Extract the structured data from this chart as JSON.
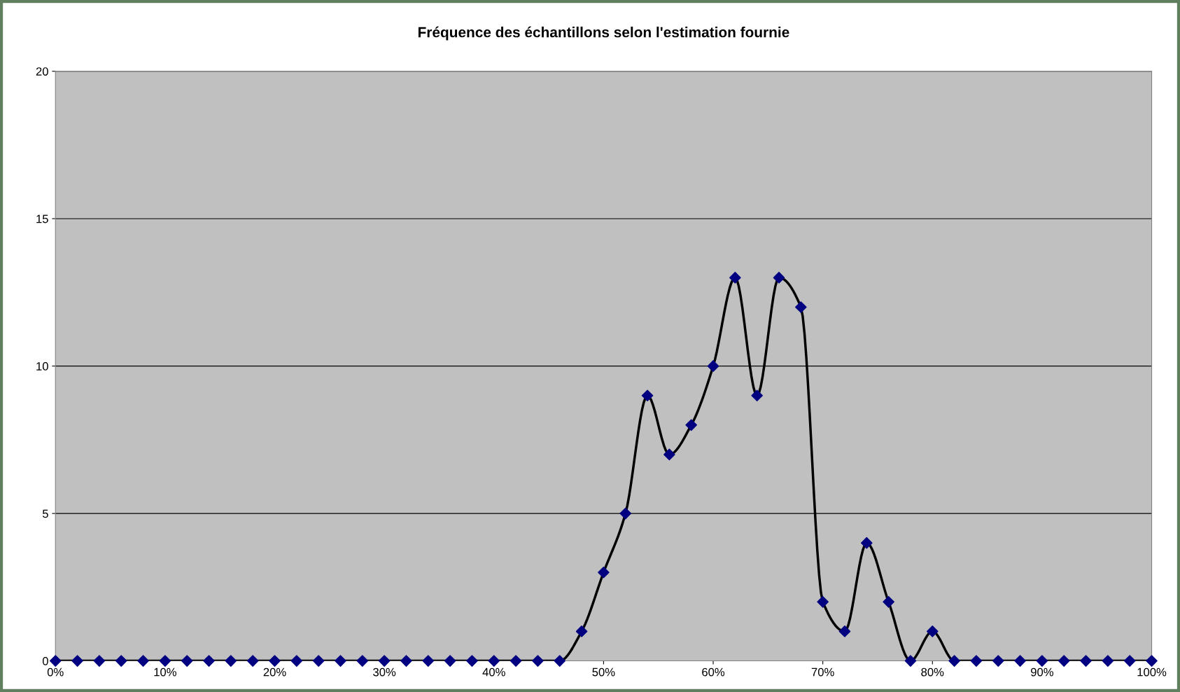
{
  "chart_data": {
    "type": "line",
    "title": "Fréquence des échantillons selon l'estimation fournie",
    "x": [
      0,
      2,
      4,
      6,
      8,
      10,
      12,
      14,
      16,
      18,
      20,
      22,
      24,
      26,
      28,
      30,
      32,
      34,
      36,
      38,
      40,
      42,
      44,
      46,
      48,
      50,
      52,
      54,
      56,
      58,
      60,
      62,
      64,
      66,
      68,
      70,
      72,
      74,
      76,
      78,
      80,
      82,
      84,
      86,
      88,
      90,
      92,
      94,
      96,
      98,
      100
    ],
    "series": [
      {
        "color": "#000000",
        "values": [
          0,
          0,
          0,
          0,
          0,
          0,
          0,
          0,
          0,
          0,
          0,
          0,
          0,
          0,
          0,
          0,
          0,
          0,
          0,
          0,
          0,
          0,
          0,
          0,
          1,
          3,
          5,
          9,
          7,
          8,
          10,
          13,
          9,
          13,
          12,
          2,
          1,
          4,
          2,
          0,
          1,
          0,
          0,
          0,
          0,
          0,
          0,
          0,
          0,
          0,
          0
        ],
        "colors": [
          "#000080",
          "#000080",
          "#000080",
          "#000080",
          "#000080",
          "#000080",
          "#000080",
          "#000080",
          "#000080",
          "#000080",
          "#000080",
          "#000080",
          "#000080",
          "#000080",
          "#000080",
          "#000080",
          "#000080",
          "#000080",
          "#000080",
          "#000080",
          "#000080",
          "#000080",
          "#000080",
          "#000080",
          "#000080",
          "#000080",
          "#000080",
          "#000080",
          "#000080",
          "#000080",
          "#000080",
          "#000080",
          "#000080",
          "#000080",
          "#000080",
          "#000080",
          "#000080",
          "#000080",
          "#000080",
          "#000080",
          "#000080",
          "#000080",
          "#000080",
          "#000080",
          "#000080",
          "#000080",
          "#000080",
          "#000080",
          "#000080",
          "#000080",
          "#000080"
        ]
      }
    ],
    "marker": "diamond",
    "line_style": "solid",
    "grid": "y",
    "legend": false,
    "xlim": [
      0,
      100
    ],
    "xticks": [
      {
        "value": 0,
        "label": "0%"
      },
      {
        "value": 10,
        "label": "10%"
      },
      {
        "value": 20,
        "label": "20%"
      },
      {
        "value": 30,
        "label": "30%"
      },
      {
        "value": 40,
        "label": "40%"
      },
      {
        "value": 50,
        "label": "50%"
      },
      {
        "value": 60,
        "label": "60%"
      },
      {
        "value": 70,
        "label": "70%"
      },
      {
        "value": 80,
        "label": "80%"
      },
      {
        "value": 90,
        "label": "90%"
      },
      {
        "value": 100,
        "label": "100%"
      }
    ],
    "ylim": [
      0,
      20
    ],
    "yticks": [
      0,
      5,
      10,
      15,
      20
    ]
  }
}
